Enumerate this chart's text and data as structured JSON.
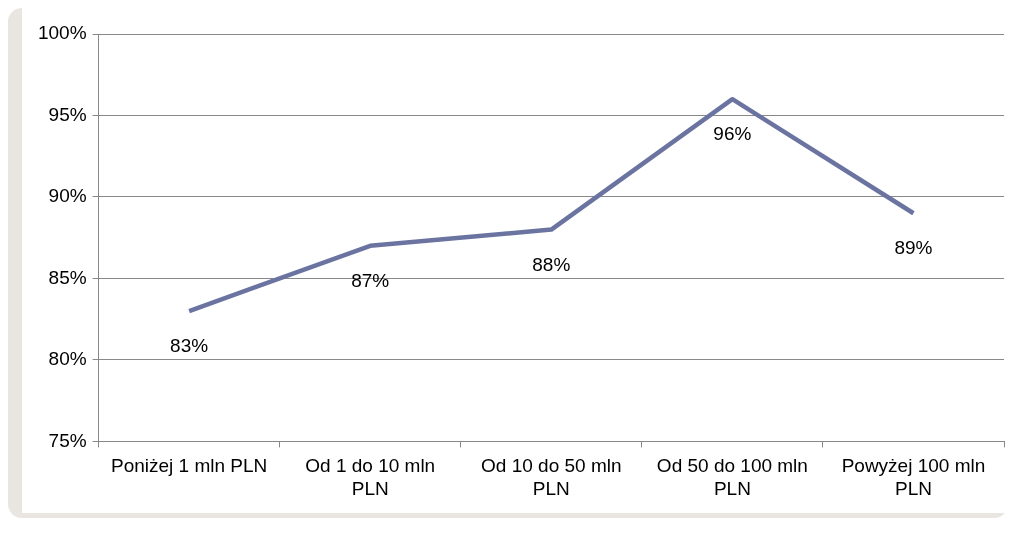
{
  "chart_data": {
    "type": "line",
    "categories": [
      "Poniżej 1 mln PLN",
      "Od 1 do 10 mln PLN",
      "Od 10 do 50 mln PLN",
      "Od 50 do 100 mln PLN",
      "Powyżej 100 mln PLN"
    ],
    "series": [
      {
        "color": "#6b74a0",
        "values": [
          83,
          87,
          88,
          96,
          89
        ],
        "value_labels": [
          "83%",
          "87%",
          "88%",
          "96%",
          "89%"
        ]
      }
    ],
    "ylim": [
      75,
      100
    ],
    "yticks": [
      {
        "value": 75,
        "label": "75%"
      },
      {
        "value": 80,
        "label": "80%"
      },
      {
        "value": 85,
        "label": "85%"
      },
      {
        "value": 90,
        "label": "90%"
      },
      {
        "value": 95,
        "label": "95%"
      },
      {
        "value": 100,
        "label": "100%"
      }
    ],
    "grid": "y",
    "legend": false,
    "marker": "none",
    "line_style": "solid"
  }
}
